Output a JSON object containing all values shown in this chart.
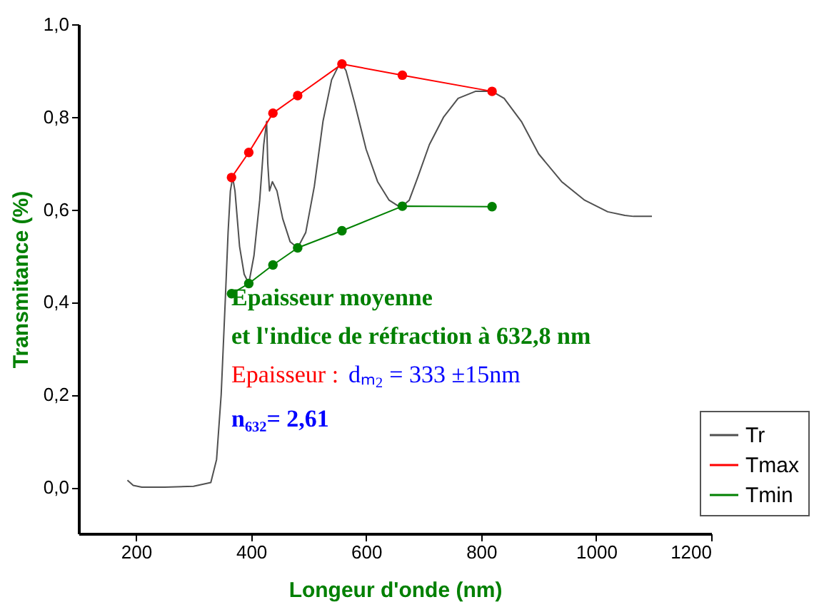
{
  "chart_data": {
    "type": "line",
    "xlabel": "Longeur d'onde (nm)",
    "ylabel": "Transmitance (%)",
    "xlim": [
      100,
      1200
    ],
    "xticks": [
      200,
      400,
      600,
      800,
      1000,
      1200
    ],
    "ylim": [
      -0.1,
      1.0
    ],
    "yticks": [
      {
        "value": 0,
        "label": "0,0"
      },
      {
        "value": 0.2,
        "label": "0,2"
      },
      {
        "value": 0.4,
        "label": "0,4"
      },
      {
        "value": 0.6,
        "label": "0,6"
      },
      {
        "value": 0.8,
        "label": "0,8"
      },
      {
        "value": 1.0,
        "label": "1,0"
      }
    ],
    "grid": false,
    "legend": "bottom right",
    "line_style": "solid",
    "series": [
      {
        "name": "Tr",
        "color": "#505050",
        "marker": "none",
        "x": [
          185,
          195,
          210,
          250,
          300,
          330,
          340,
          348,
          355,
          360,
          364,
          368,
          372,
          380,
          388,
          396,
          405,
          415,
          422,
          427,
          429,
          432,
          437,
          445,
          455,
          468,
          481,
          495,
          510,
          525,
          540,
          552,
          558,
          565,
          580,
          600,
          620,
          640,
          655,
          663,
          675,
          690,
          710,
          735,
          760,
          790,
          819,
          840,
          870,
          900,
          940,
          980,
          1020,
          1050,
          1065,
          1097
        ],
        "values": [
          0.015,
          0.004,
          0.0,
          0.0,
          0.002,
          0.01,
          0.06,
          0.2,
          0.4,
          0.55,
          0.64,
          0.669,
          0.64,
          0.52,
          0.46,
          0.44,
          0.5,
          0.62,
          0.74,
          0.79,
          0.7,
          0.64,
          0.66,
          0.64,
          0.58,
          0.53,
          0.517,
          0.55,
          0.65,
          0.79,
          0.88,
          0.91,
          0.914,
          0.9,
          0.83,
          0.73,
          0.66,
          0.62,
          0.608,
          0.607,
          0.62,
          0.67,
          0.74,
          0.8,
          0.84,
          0.855,
          0.855,
          0.84,
          0.79,
          0.72,
          0.66,
          0.62,
          0.595,
          0.587,
          0.585,
          0.585
        ]
      },
      {
        "name": "Tmax",
        "color": "#ff0000",
        "marker": "circle",
        "x": [
          366,
          396,
          438,
          481,
          558,
          663,
          819
        ],
        "values": [
          0.669,
          0.723,
          0.808,
          0.846,
          0.914,
          0.89,
          0.855
        ]
      },
      {
        "name": "Tmin",
        "color": "#008000",
        "marker": "circle",
        "x": [
          366,
          396,
          438,
          481,
          558,
          663,
          819
        ],
        "values": [
          0.418,
          0.44,
          0.48,
          0.517,
          0.554,
          0.607,
          0.606
        ]
      }
    ],
    "annotations": [
      "Epaisseur moyenne",
      "et l'indice de réfraction à 632,8 nm",
      "Epaisseur : ",
      "dₘ₂ = 333 ±15nm",
      "n₆₃₂= 2,61"
    ]
  }
}
